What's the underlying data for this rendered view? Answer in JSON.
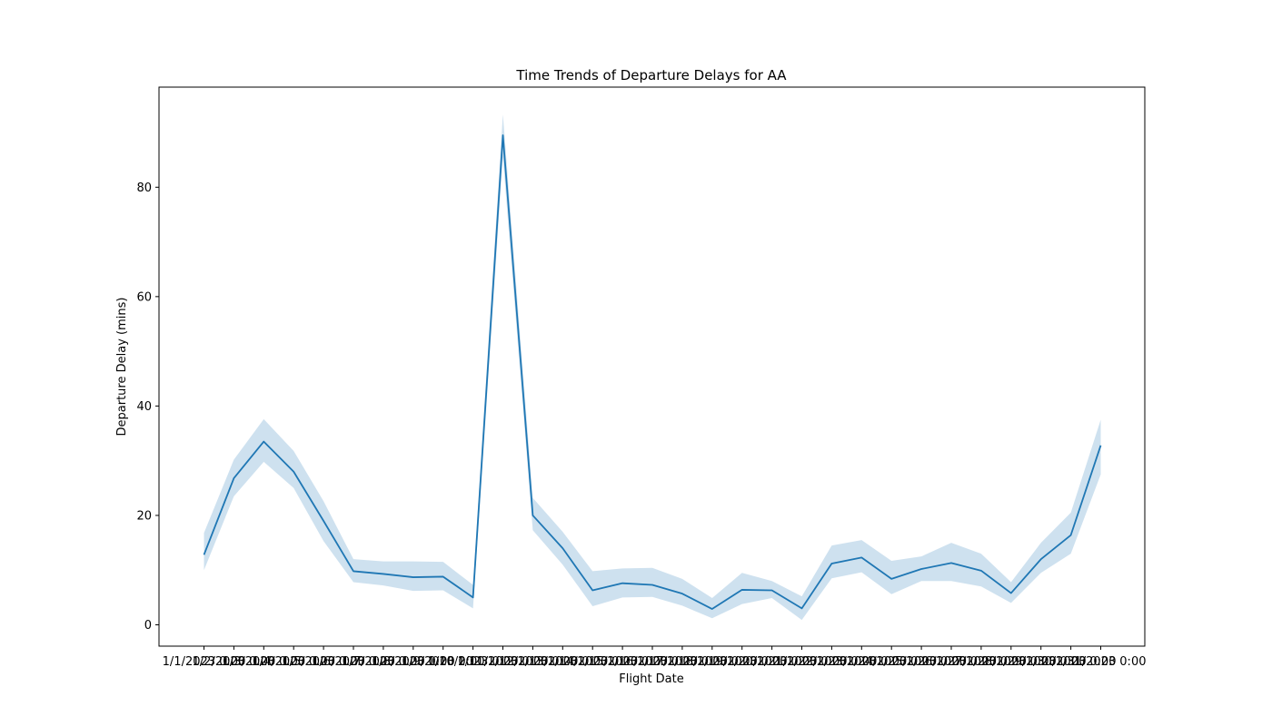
{
  "chart_data": {
    "type": "line",
    "title": "Time Trends of Departure Delays for AA",
    "xlabel": "Flight Date",
    "ylabel": "Departure Delay (mins)",
    "ylim": [
      -3.9,
      98.3
    ],
    "yticks": [
      0,
      20,
      40,
      60,
      80
    ],
    "grid": false,
    "legend": "none",
    "line_color": "#1f77b4",
    "band_color": "#1f77b4",
    "x": [
      "1/1/2023 0:00",
      "1/2/2023 0:00",
      "1/3/2023 0:00",
      "1/4/2023 0:00",
      "1/5/2023 0:00",
      "1/6/2023 0:00",
      "1/7/2023 0:00",
      "1/8/2023 0:00",
      "1/9/2023 0:00",
      "1/10/2023 0:00",
      "1/11/2023 0:00",
      "1/12/2023 0:00",
      "1/13/2023 0:00",
      "1/14/2023 0:00",
      "1/15/2023 0:00",
      "1/16/2023 0:00",
      "1/17/2023 0:00",
      "1/18/2023 0:00",
      "1/19/2023 0:00",
      "1/20/2023 0:00",
      "1/21/2023 0:00",
      "1/22/2023 0:00",
      "1/23/2023 0:00",
      "1/24/2023 0:00",
      "1/25/2023 0:00",
      "1/26/2023 0:00",
      "1/27/2023 0:00",
      "1/28/2023 0:00",
      "1/29/2023 0:00",
      "1/30/2023 0:00",
      "1/31/2023 0:00"
    ],
    "series": [
      {
        "values": [
          12.8,
          26.8,
          33.5,
          28.0,
          19.0,
          9.8,
          9.3,
          8.7,
          8.8,
          5.0,
          89.5,
          20.0,
          14.0,
          6.3,
          7.6,
          7.3,
          5.7,
          2.9,
          6.4,
          6.3,
          3.0,
          11.2,
          12.3,
          8.4,
          10.2,
          11.3,
          9.9,
          5.8,
          12.0,
          16.4,
          32.8
        ],
        "ci_low": [
          10.0,
          23.5,
          29.8,
          25.0,
          15.3,
          7.8,
          7.2,
          6.2,
          6.3,
          3.0,
          85.5,
          17.3,
          11.0,
          3.4,
          5.0,
          5.1,
          3.5,
          1.2,
          3.8,
          4.9,
          0.9,
          8.5,
          9.6,
          5.6,
          8.0,
          8.0,
          7.0,
          4.0,
          9.5,
          13.0,
          27.5
        ],
        "ci_high": [
          16.8,
          30.2,
          37.6,
          31.8,
          22.6,
          12.0,
          11.6,
          11.6,
          11.5,
          7.3,
          93.3,
          23.2,
          17.0,
          9.8,
          10.3,
          10.4,
          8.4,
          4.9,
          9.5,
          8.0,
          5.2,
          14.5,
          15.5,
          11.7,
          12.5,
          15.0,
          13.0,
          7.8,
          15.0,
          20.5,
          37.5
        ]
      }
    ]
  }
}
